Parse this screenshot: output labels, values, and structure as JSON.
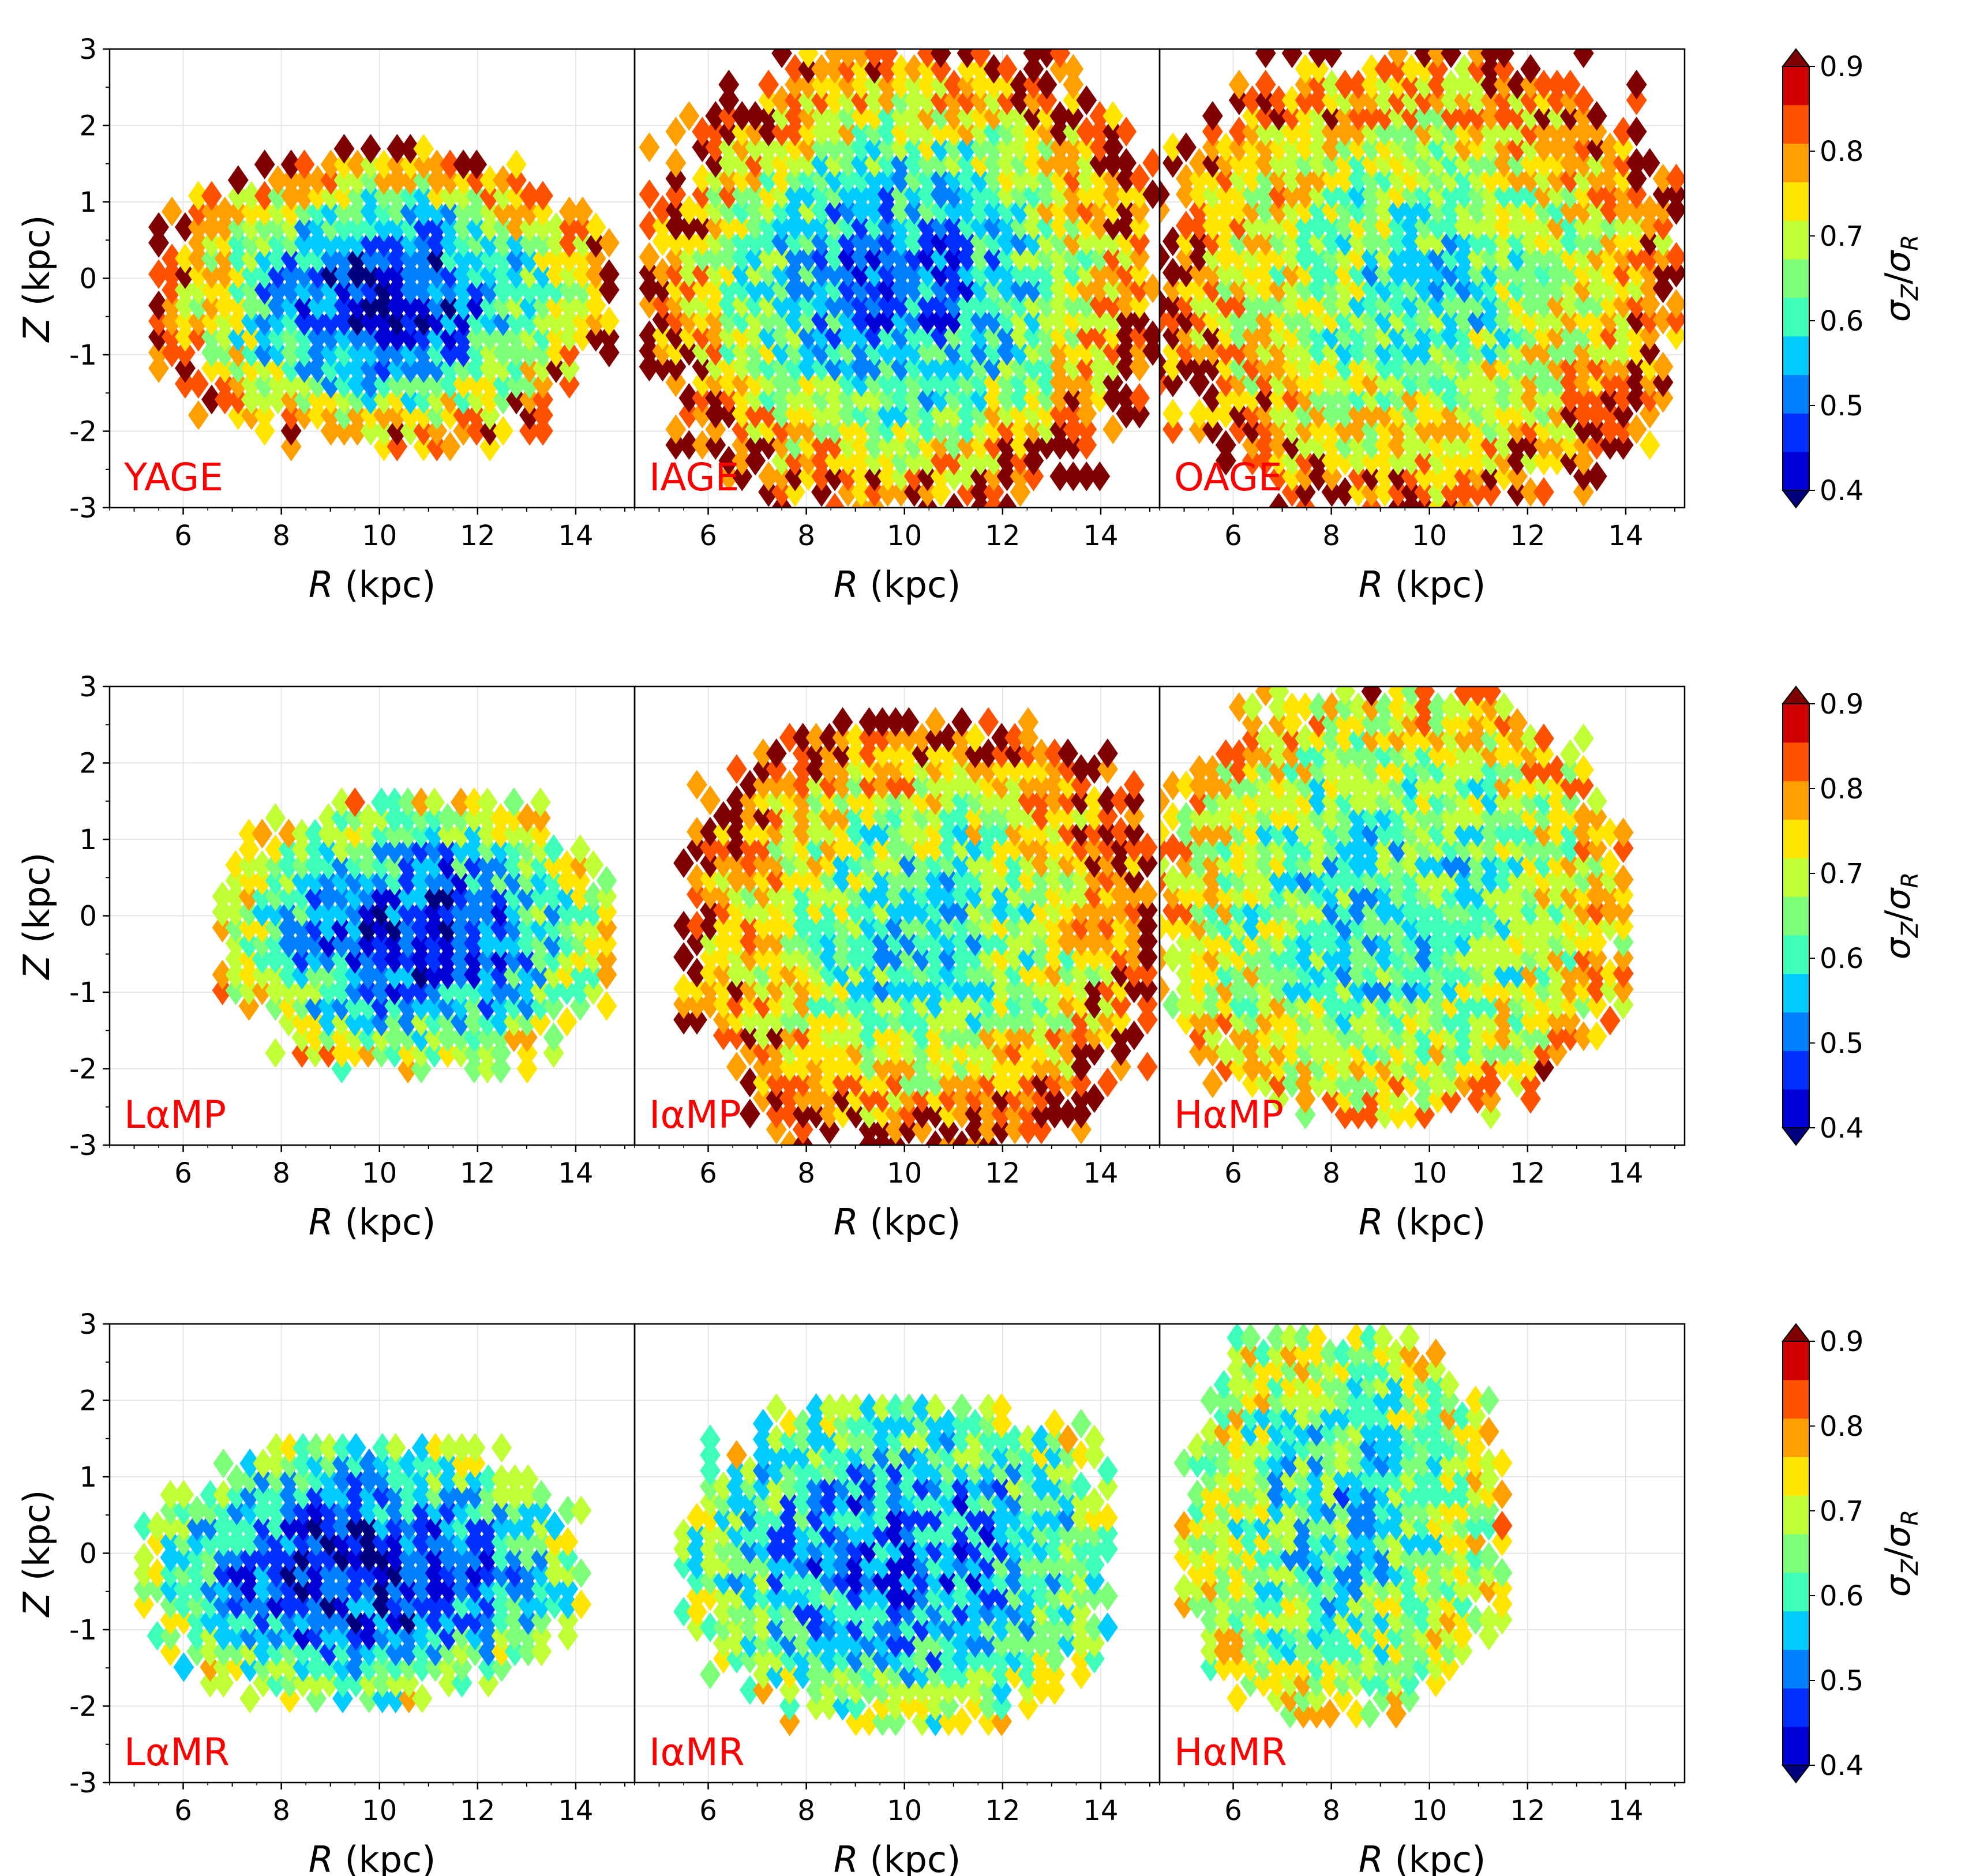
{
  "figure": {
    "description_free": true
  },
  "axes": {
    "xlabel": "R (kpc)",
    "xlabel_italic": "R",
    "xlabel_unit": " (kpc)",
    "ylabel": "Z (kpc)",
    "ylabel_italic": "Z",
    "ylabel_unit": " (kpc)",
    "xlim": [
      4.5,
      15.2
    ],
    "ylim": [
      -3,
      3
    ],
    "xticks": [
      "6",
      "8",
      "10",
      "12",
      "14"
    ],
    "yticks": [
      "3",
      "2",
      "1",
      "0",
      "-1",
      "-2",
      "-3"
    ]
  },
  "colorbar": {
    "label": "σZ/σR",
    "label_symbol": "σ",
    "label_sub1": "Z",
    "label_slash": "/",
    "label_sub2": "R",
    "ticks": [
      "0.9",
      "0.8",
      "0.7",
      "0.6",
      "0.5",
      "0.4"
    ],
    "levels": [
      0.4,
      0.45,
      0.5,
      0.55,
      0.6,
      0.65,
      0.7,
      0.75,
      0.8,
      0.85,
      0.9
    ],
    "colors": [
      "#00007f",
      "#0000d6",
      "#0030ff",
      "#0080ff",
      "#00ccff",
      "#3dffba",
      "#7dff7a",
      "#c0ff36",
      "#ffe500",
      "#ff9f00",
      "#ff5200",
      "#d00000",
      "#7f0000"
    ],
    "extend": "both"
  },
  "chart_data": [
    {
      "type": "heatmap",
      "label": "YAGE",
      "row": 0,
      "col": 0,
      "r_range": [
        5.5,
        14.8
      ],
      "z_range": [
        -2.2,
        1.7
      ],
      "inner_value": 0.42,
      "outer_value": 0.88
    },
    {
      "type": "heatmap",
      "label": "IAGE",
      "row": 0,
      "col": 1,
      "r_range": [
        4.8,
        15.2
      ],
      "z_range": [
        -3.0,
        3.0
      ],
      "inner_value": 0.5,
      "outer_value": 0.9
    },
    {
      "type": "heatmap",
      "label": "OAGE",
      "row": 0,
      "col": 2,
      "r_range": [
        4.5,
        15.2
      ],
      "z_range": [
        -3.0,
        3.0
      ],
      "inner_value": 0.62,
      "outer_value": 0.88
    },
    {
      "type": "heatmap",
      "label": "LαMP",
      "row": 1,
      "col": 0,
      "r_range": [
        6.8,
        14.8
      ],
      "z_range": [
        -2.0,
        1.6
      ],
      "inner_value": 0.45,
      "outer_value": 0.75
    },
    {
      "type": "heatmap",
      "label": "IαMP",
      "row": 1,
      "col": 1,
      "r_range": [
        5.5,
        15.2
      ],
      "z_range": [
        -3.0,
        2.6
      ],
      "inner_value": 0.6,
      "outer_value": 0.9
    },
    {
      "type": "heatmap",
      "label": "HαMP",
      "row": 1,
      "col": 2,
      "r_range": [
        4.5,
        14.0
      ],
      "z_range": [
        -2.6,
        3.0
      ],
      "inner_value": 0.6,
      "outer_value": 0.8
    },
    {
      "type": "heatmap",
      "label": "LαMR",
      "row": 2,
      "col": 0,
      "r_range": [
        5.2,
        14.2
      ],
      "z_range": [
        -1.9,
        1.5
      ],
      "inner_value": 0.42,
      "outer_value": 0.7
    },
    {
      "type": "heatmap",
      "label": "IαMR",
      "row": 2,
      "col": 1,
      "r_range": [
        5.5,
        14.4
      ],
      "z_range": [
        -2.2,
        2.1
      ],
      "inner_value": 0.5,
      "outer_value": 0.7
    },
    {
      "type": "heatmap",
      "label": "HαMR",
      "row": 2,
      "col": 2,
      "r_range": [
        5.0,
        11.5
      ],
      "z_range": [
        -2.1,
        3.0
      ],
      "inner_value": 0.6,
      "outer_value": 0.75
    }
  ]
}
